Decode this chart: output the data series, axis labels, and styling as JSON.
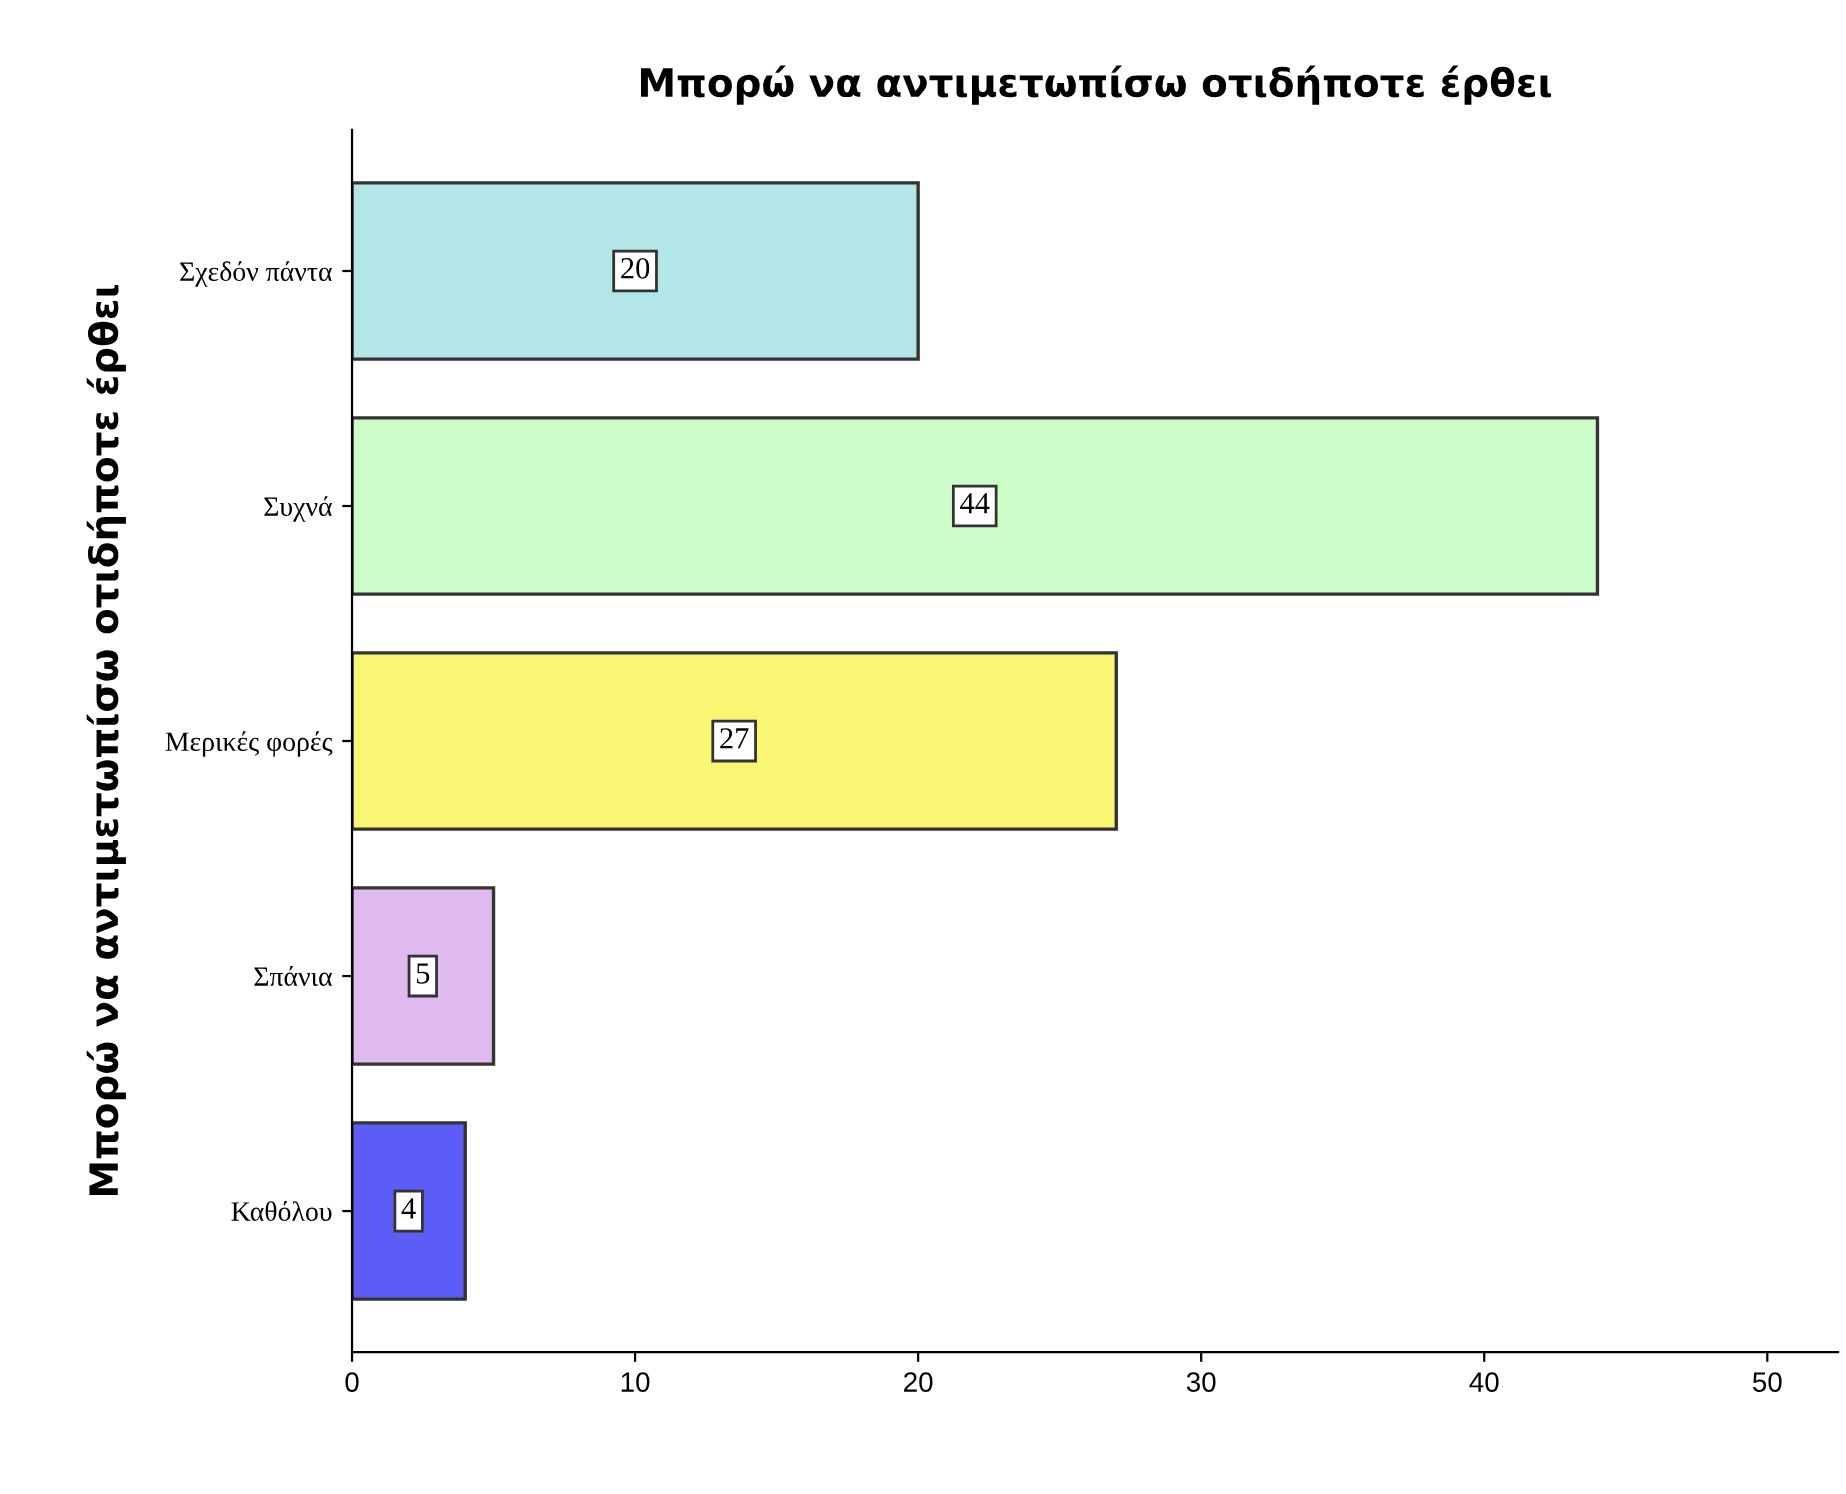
{
  "chart_data": {
    "type": "bar",
    "orientation": "horizontal",
    "title": "Μπορώ να αντιμετωπίσω οτιδήποτε έρθει",
    "ylabel": "Μπορώ να αντιμετωπίσω οτιδήποτε έρθει",
    "categories": [
      "Σχεδόν πάντα",
      "Συχνά",
      "Μερικές φορές",
      "Σπάνια",
      "Καθόλου"
    ],
    "values": [
      20,
      44,
      27,
      5,
      4
    ],
    "colors": [
      "#b3e6e6",
      "#ccfdc8",
      "#f8f672",
      "#dfbaf0",
      "#5c5cf6"
    ],
    "xlim": [
      0,
      52.5
    ],
    "xticks": [
      0,
      10,
      20,
      30,
      40,
      50
    ],
    "grid": false,
    "data_labels": true
  }
}
